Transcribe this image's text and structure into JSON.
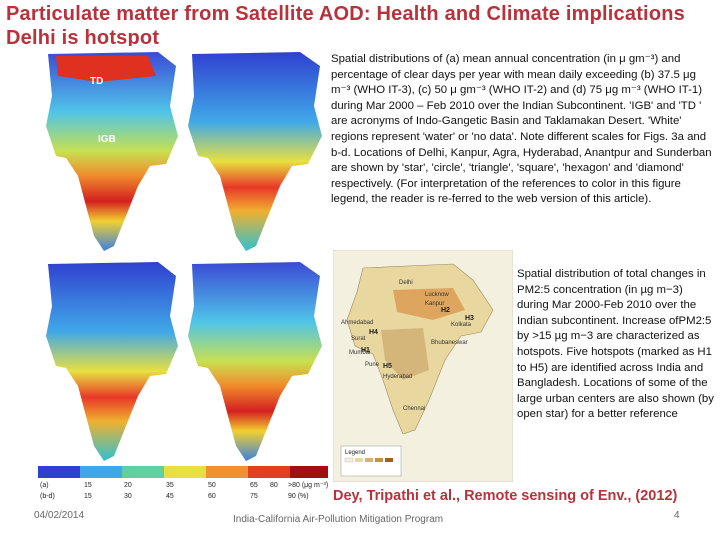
{
  "slide": {
    "title": "Particulate matter from Satellite AOD: Health and Climate implications  Delhi is hotspot",
    "description_1": "Spatial distributions of (a) mean annual concentration (in μ gm⁻³) and percentage of clear days per year with mean daily exceeding (b) 37.5 μg m⁻³ (WHO IT-3), (c) 50 μ gm⁻³ (WHO IT-2) and (d) 75 μg m⁻³ (WHO IT-1) during Mar 2000 – Feb 2010 over the Indian Subcontinent. 'IGB' and 'TD ' are acronyms of Indo-Gangetic Basin and Taklamakan Desert. 'White' regions represent 'water' or 'no data'. Note different scales for Figs. 3a and b-d. Locations of Delhi, Kanpur, Agra, Hyderabad, Anantpur and Sunderban are shown by 'star', 'circle', 'triangle', 'square', 'hexagon' and 'diamond' respectively. (For interpretation of the references to color in this figure legend, the reader is re-ferred to the web version of this article).",
    "description_2": "Spatial distribution of total changes in PM2:5 concentration (in µg m−3) during Mar 2000-Feb 2010 over the Indian subcontinent. Increase ofPM2:5 by >15 µg m−3 are characterized as hotspots. Five hotspots (marked as H1 to H5) are identified across India and Bangladesh. Locations of some of the large urban centers are also shown (by open star) for a better reference",
    "citation": "Dey, Tripathi et al., Remote sensing of Env., (2012)"
  },
  "footer": {
    "date": "04/02/2014",
    "center": "India-California Air-Pollution Mitigation Program",
    "page": "4"
  },
  "maps": {
    "labels": [
      "TD",
      "IGB"
    ],
    "legend_ticks_top": [
      "(a)",
      "15",
      "20",
      "35",
      "50",
      "65",
      "80",
      ">80 (μg m⁻³)"
    ],
    "legend_ticks_bottom": [
      "(b-d)",
      "15",
      "30",
      "45",
      "60",
      "75",
      "90 (%)"
    ]
  },
  "hotspot_map": {
    "hotspots": [
      "H1",
      "H2",
      "H3",
      "H4",
      "H5"
    ],
    "cities": [
      "Delhi",
      "Lucknow",
      "Kanpur",
      "Ahmedabad",
      "Surat",
      "Mumbai",
      "Pune",
      "Hyderabad",
      "Kolkata",
      "Bhubaneswar",
      "Chennai"
    ],
    "legend_title": "Legend"
  },
  "colors": {
    "title": "#b8323c",
    "map_blue": "#3b4bd6",
    "map_cyan": "#4fc4e8",
    "map_yellow": "#e8e040",
    "map_orange": "#f08c2c",
    "map_red": "#d42020"
  }
}
